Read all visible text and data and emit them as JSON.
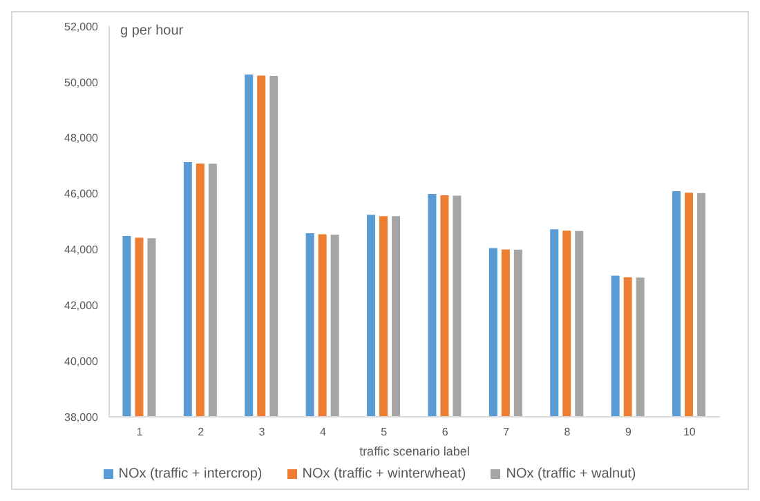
{
  "chart_data": {
    "type": "bar",
    "ylabel": "g per hour",
    "xlabel": "traffic scenario label",
    "categories": [
      "1",
      "2",
      "3",
      "4",
      "5",
      "6",
      "7",
      "8",
      "9",
      "10"
    ],
    "series": [
      {
        "name": "NOx (traffic + intercrop)",
        "color": "#5b9bd5",
        "values": [
          44480,
          47130,
          50270,
          44580,
          45240,
          45990,
          44050,
          44720,
          43060,
          46090
        ]
      },
      {
        "name": "NOx (traffic + winterwheat)",
        "color": "#ed7d31",
        "values": [
          44420,
          47080,
          50230,
          44540,
          45190,
          45940,
          44000,
          44670,
          43000,
          46030
        ]
      },
      {
        "name": "NOx (traffic + walnut)",
        "color": "#a5a5a5",
        "values": [
          44400,
          47070,
          50220,
          44530,
          45190,
          45930,
          43990,
          44660,
          42990,
          46020
        ]
      }
    ],
    "ylim": [
      38000,
      52000
    ],
    "yticks": [
      {
        "value": 38000,
        "label": "38,000"
      },
      {
        "value": 40000,
        "label": "40,000"
      },
      {
        "value": 42000,
        "label": "42,000"
      },
      {
        "value": 44000,
        "label": "44,000"
      },
      {
        "value": 46000,
        "label": "46,000"
      },
      {
        "value": 48000,
        "label": "48,000"
      },
      {
        "value": 50000,
        "label": "50,000"
      },
      {
        "value": 52000,
        "label": "52,000"
      }
    ],
    "grid": false,
    "legend": "bottom"
  }
}
